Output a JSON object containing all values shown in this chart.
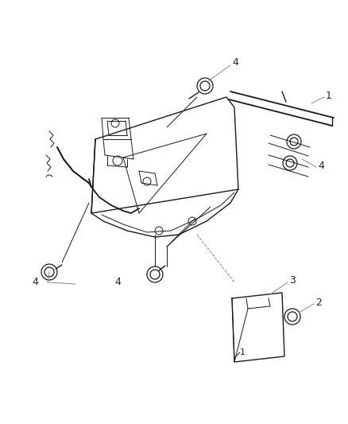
{
  "background_color": "#ffffff",
  "line_color": "#1a1a1a",
  "gray_color": "#888888",
  "figsize": [
    4.38,
    5.33
  ],
  "dpi": 100,
  "main_lw": 1.0,
  "thin_lw": 0.7,
  "bolt_lw": 0.9
}
